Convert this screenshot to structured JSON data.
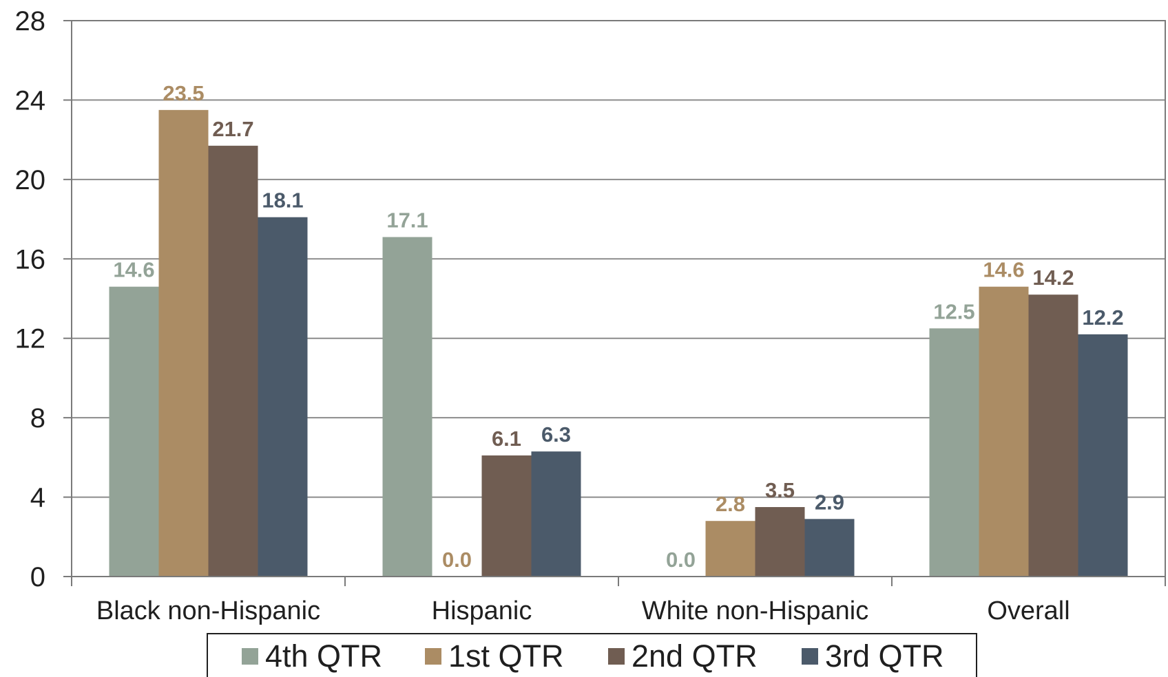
{
  "chart_data": {
    "type": "bar",
    "categories": [
      "Black non-Hispanic",
      "Hispanic",
      "White non-Hispanic",
      "Overall"
    ],
    "series": [
      {
        "name": "4th QTR",
        "color": "#93a397",
        "values": [
          14.6,
          17.1,
          0.0,
          12.5
        ],
        "labels": [
          "14.6",
          "17.1",
          "0.0",
          "12.5"
        ]
      },
      {
        "name": "1st QTR",
        "color": "#ab8c64",
        "values": [
          23.5,
          0.0,
          2.8,
          14.6
        ],
        "labels": [
          "23.5",
          "0.0",
          "2.8",
          "14.6"
        ]
      },
      {
        "name": "2nd QTR",
        "color": "#705d52",
        "values": [
          21.7,
          6.1,
          3.5,
          14.2
        ],
        "labels": [
          "21.7",
          "6.1",
          "3.5",
          "14.2"
        ]
      },
      {
        "name": "3rd QTR",
        "color": "#4b5a6a",
        "values": [
          18.1,
          6.3,
          2.9,
          12.2
        ],
        "labels": [
          "18.1",
          "6.3",
          "2.9",
          "12.2"
        ]
      }
    ],
    "yticks": [
      "0",
      "4",
      "8",
      "12",
      "16",
      "20",
      "24",
      "28"
    ],
    "ylim": [
      0,
      28
    ],
    "grid": true,
    "legend_position": "bottom"
  }
}
